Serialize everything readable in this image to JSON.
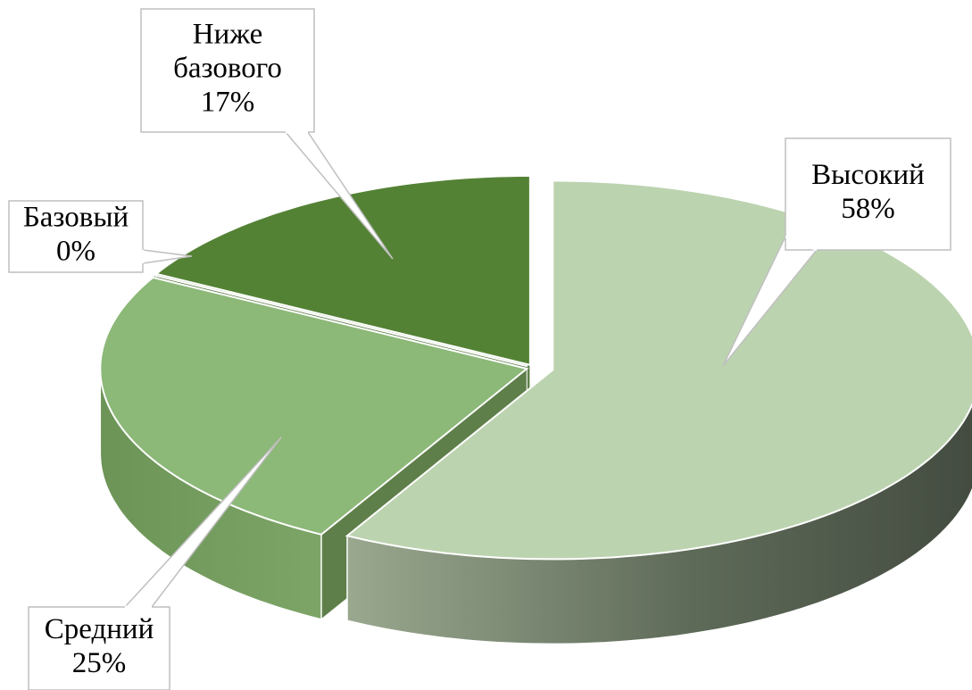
{
  "chart_data": {
    "type": "pie3d",
    "categories": [
      "Высокий",
      "Средний",
      "Базовый",
      "Ниже базового"
    ],
    "category_lines": [
      [
        "Высокий"
      ],
      [
        "Средний"
      ],
      [
        "Базовый"
      ],
      [
        "Ниже",
        "базового"
      ]
    ],
    "values": [
      58,
      25,
      0,
      17
    ],
    "value_labels": [
      "58%",
      "25%",
      "0%",
      "17%"
    ],
    "colors": [
      "#bcd3b0",
      "#8cb878",
      "#3b5a2a",
      "#548235"
    ]
  }
}
